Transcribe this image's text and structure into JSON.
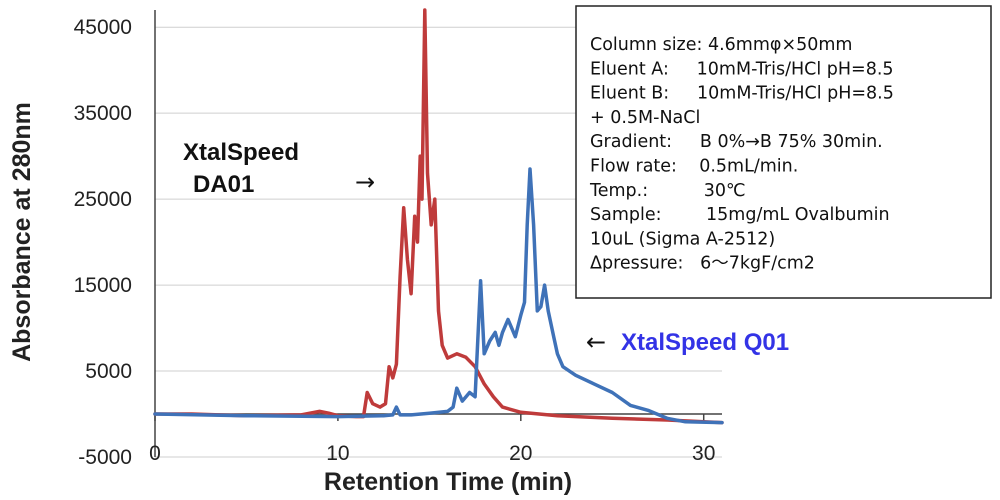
{
  "chart_data": {
    "type": "line",
    "xlabel": "Retention Time (min)",
    "ylabel": "Absorbance at 280nm",
    "xlim": [
      0,
      31
    ],
    "ylim": [
      -5000,
      47000
    ],
    "x_ticks": [
      0,
      10,
      20,
      30
    ],
    "y_ticks": [
      45000,
      35000,
      25000,
      15000,
      5000,
      -5000
    ],
    "grid": "horizontal",
    "series": [
      {
        "name": "XtalSpeed DA01",
        "label_lines": [
          "XtalSpeed",
          "DA01"
        ],
        "label_arrow": "→",
        "color": "#bf3b3b",
        "points": [
          [
            0,
            0
          ],
          [
            2,
            0
          ],
          [
            5,
            -200
          ],
          [
            8,
            -100
          ],
          [
            9,
            300
          ],
          [
            9.5,
            100
          ],
          [
            10,
            -200
          ],
          [
            11,
            -300
          ],
          [
            11.4,
            -300
          ],
          [
            11.6,
            2500
          ],
          [
            11.9,
            1200
          ],
          [
            12.3,
            800
          ],
          [
            12.6,
            1200
          ],
          [
            12.8,
            5500
          ],
          [
            13.0,
            4200
          ],
          [
            13.2,
            5800
          ],
          [
            13.4,
            16000
          ],
          [
            13.6,
            24000
          ],
          [
            13.8,
            18000
          ],
          [
            14.0,
            14000
          ],
          [
            14.2,
            23000
          ],
          [
            14.35,
            20000
          ],
          [
            14.5,
            30000
          ],
          [
            14.6,
            25000
          ],
          [
            14.75,
            47000
          ],
          [
            14.9,
            28000
          ],
          [
            15.1,
            22000
          ],
          [
            15.3,
            25000
          ],
          [
            15.5,
            12000
          ],
          [
            15.7,
            8000
          ],
          [
            16.0,
            6500
          ],
          [
            16.5,
            7000
          ],
          [
            17.0,
            6600
          ],
          [
            17.5,
            5500
          ],
          [
            18.0,
            3500
          ],
          [
            18.5,
            2000
          ],
          [
            19.0,
            800
          ],
          [
            20,
            200
          ],
          [
            22,
            -200
          ],
          [
            25,
            -500
          ],
          [
            28,
            -700
          ],
          [
            31,
            -1000
          ]
        ]
      },
      {
        "name": "XtalSpeed Q01",
        "label_lines": [
          "XtalSpeed Q01"
        ],
        "label_arrow": "←",
        "color": "#3f72b8",
        "points": [
          [
            0,
            0
          ],
          [
            5,
            -200
          ],
          [
            10,
            -300
          ],
          [
            12.5,
            -200
          ],
          [
            13.0,
            -100
          ],
          [
            13.2,
            800
          ],
          [
            13.4,
            -100
          ],
          [
            14,
            -100
          ],
          [
            15,
            100
          ],
          [
            16,
            300
          ],
          [
            16.3,
            800
          ],
          [
            16.5,
            3000
          ],
          [
            16.8,
            1500
          ],
          [
            17.2,
            2500
          ],
          [
            17.5,
            2000
          ],
          [
            17.8,
            15500
          ],
          [
            18.0,
            7000
          ],
          [
            18.3,
            8500
          ],
          [
            18.6,
            9500
          ],
          [
            18.8,
            8000
          ],
          [
            19.0,
            9500
          ],
          [
            19.3,
            11000
          ],
          [
            19.5,
            10000
          ],
          [
            19.7,
            9000
          ],
          [
            20.0,
            11500
          ],
          [
            20.2,
            13000
          ],
          [
            20.35,
            22000
          ],
          [
            20.5,
            28500
          ],
          [
            20.7,
            22000
          ],
          [
            20.9,
            12000
          ],
          [
            21.1,
            12500
          ],
          [
            21.3,
            15000
          ],
          [
            21.5,
            12000
          ],
          [
            21.8,
            9000
          ],
          [
            22.0,
            7000
          ],
          [
            22.3,
            5500
          ],
          [
            23.0,
            4500
          ],
          [
            24.0,
            3500
          ],
          [
            25.0,
            2500
          ],
          [
            26.0,
            1000
          ],
          [
            27.0,
            400
          ],
          [
            28.0,
            -500
          ],
          [
            29.0,
            -900
          ],
          [
            31,
            -1000
          ]
        ]
      }
    ],
    "annotation": {
      "lines": [
        "Column size: 4.6mmφ×50mm",
        "Eluent A:     10mM-Tris/HCl pH=8.5",
        "Eluent B:     10mM-Tris/HCl pH=8.5",
        "+ 0.5M-NaCl",
        "Gradient:     B 0%→B 75% 30min.",
        "Flow rate:    0.5mL/min.",
        "Temp.:          30℃",
        "Sample:        15mg/mL Ovalbumin",
        "10uL (Sigma A-2512)",
        "Δpressure:   6～7kgF/cm2"
      ]
    }
  }
}
